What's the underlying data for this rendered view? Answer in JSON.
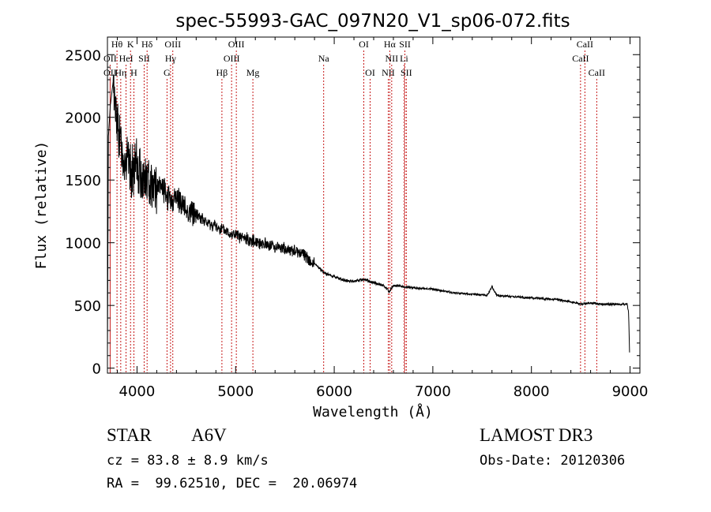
{
  "chart_data": {
    "type": "line",
    "title": "spec-55993-GAC_097N20_V1_sp06-072.fits",
    "xlabel": "Wavelength (Å)",
    "ylabel": "Flux (relative)",
    "xlim": [
      3700,
      9100
    ],
    "ylim": [
      -40,
      2640
    ],
    "xticks": [
      4000,
      5000,
      6000,
      7000,
      8000,
      9000
    ],
    "yticks": [
      0,
      500,
      1000,
      1500,
      2000,
      2500
    ],
    "spectrum_anchors": {
      "x": [
        3700,
        3710,
        3730,
        3760,
        3780,
        3800,
        3850,
        3900,
        3950,
        4000,
        4050,
        4100,
        4150,
        4200,
        4250,
        4300,
        4350,
        4400,
        4500,
        4600,
        4700,
        4800,
        4900,
        5000,
        5100,
        5200,
        5300,
        5400,
        5500,
        5600,
        5700,
        5750,
        5800,
        5900,
        6000,
        6100,
        6200,
        6250,
        6300,
        6400,
        6500,
        6560,
        6600,
        6700,
        6800,
        7000,
        7200,
        7400,
        7550,
        7600,
        7650,
        7800,
        8000,
        8200,
        8400,
        8500,
        8600,
        8700,
        8800,
        8900,
        8970,
        8985,
        8995
      ],
      "y": [
        100,
        1850,
        2100,
        2300,
        2050,
        1950,
        1700,
        1650,
        1550,
        1600,
        1520,
        1480,
        1500,
        1430,
        1450,
        1380,
        1320,
        1370,
        1260,
        1230,
        1160,
        1130,
        1090,
        1060,
        1030,
        1010,
        990,
        970,
        950,
        930,
        910,
        850,
        830,
        760,
        730,
        700,
        690,
        700,
        710,
        680,
        660,
        610,
        660,
        650,
        640,
        630,
        600,
        590,
        580,
        650,
        580,
        570,
        560,
        550,
        530,
        510,
        520,
        510,
        510,
        510,
        510,
        450,
        130
      ]
    },
    "absorption_lines": [
      {
        "name": "Hθ",
        "w": 3797,
        "row": 0
      },
      {
        "name": "K",
        "w": 3934,
        "row": 0
      },
      {
        "name": "Hδ",
        "w": 4102,
        "row": 0
      },
      {
        "name": "OIII",
        "w": 4363,
        "row": 0
      },
      {
        "name": "OIII",
        "w": 5007,
        "row": 0
      },
      {
        "name": "OI",
        "w": 6300,
        "row": 0
      },
      {
        "name": "Hα",
        "w": 6563,
        "row": 0
      },
      {
        "name": "SII",
        "w": 6717,
        "row": 0
      },
      {
        "name": "CaII",
        "w": 8542,
        "row": 0
      },
      {
        "name": "OII",
        "w": 3727,
        "row": 1
      },
      {
        "name": "HeI",
        "w": 3889,
        "row": 1
      },
      {
        "name": "SII",
        "w": 4072,
        "row": 1
      },
      {
        "name": "Hγ",
        "w": 4340,
        "row": 1
      },
      {
        "name": "OIII",
        "w": 4959,
        "row": 1
      },
      {
        "name": "Na",
        "w": 5893,
        "row": 1
      },
      {
        "name": "NII",
        "w": 6583,
        "row": 1
      },
      {
        "name": "Li",
        "w": 6708,
        "row": 1
      },
      {
        "name": "CaII",
        "w": 8498,
        "row": 1
      },
      {
        "name": "OII",
        "w": 3727,
        "row": 2
      },
      {
        "name": "Hη",
        "w": 3835,
        "row": 2
      },
      {
        "name": "H",
        "w": 3968,
        "row": 2
      },
      {
        "name": "G",
        "w": 4304,
        "row": 2
      },
      {
        "name": "Hβ",
        "w": 4861,
        "row": 2
      },
      {
        "name": "Mg",
        "w": 5175,
        "row": 2
      },
      {
        "name": "OI",
        "w": 6364,
        "row": 2
      },
      {
        "name": "NII",
        "w": 6548,
        "row": 2
      },
      {
        "name": "SII",
        "w": 6731,
        "row": 2
      },
      {
        "name": "CaII",
        "w": 8662,
        "row": 2
      }
    ]
  },
  "info": {
    "class_label": "STAR",
    "subclass": "A6V",
    "survey": "LAMOST DR3",
    "redshift": "cz = 83.8 ± 8.9 km/s",
    "obs_date": "Obs-Date: 20120306",
    "coords": "RA =  99.62510, DEC =  20.06974"
  }
}
